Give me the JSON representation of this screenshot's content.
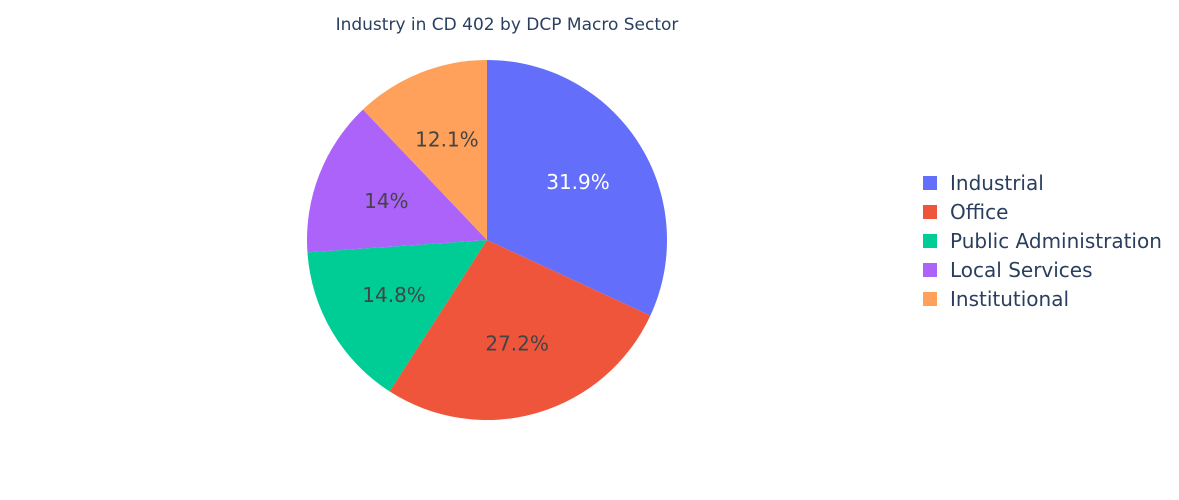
{
  "chart_data": {
    "type": "pie",
    "title": "Industry in CD 402 by DCP Macro Sector",
    "legend_position": "right",
    "slices": [
      {
        "name": "Industrial",
        "value": 31.9,
        "label": "31.9%",
        "color": "#636efa",
        "label_color": "#ffffff"
      },
      {
        "name": "Office",
        "value": 27.2,
        "label": "27.2%",
        "color": "#ef553b",
        "label_color": "#444444"
      },
      {
        "name": "Public Administration",
        "value": 14.8,
        "label": "14.8%",
        "color": "#00cc96",
        "label_color": "#444444"
      },
      {
        "name": "Local Services",
        "value": 14.0,
        "label": "14%",
        "color": "#ab63fa",
        "label_color": "#444444"
      },
      {
        "name": "Institutional",
        "value": 12.1,
        "label": "12.1%",
        "color": "#ffa15a",
        "label_color": "#444444"
      }
    ]
  }
}
